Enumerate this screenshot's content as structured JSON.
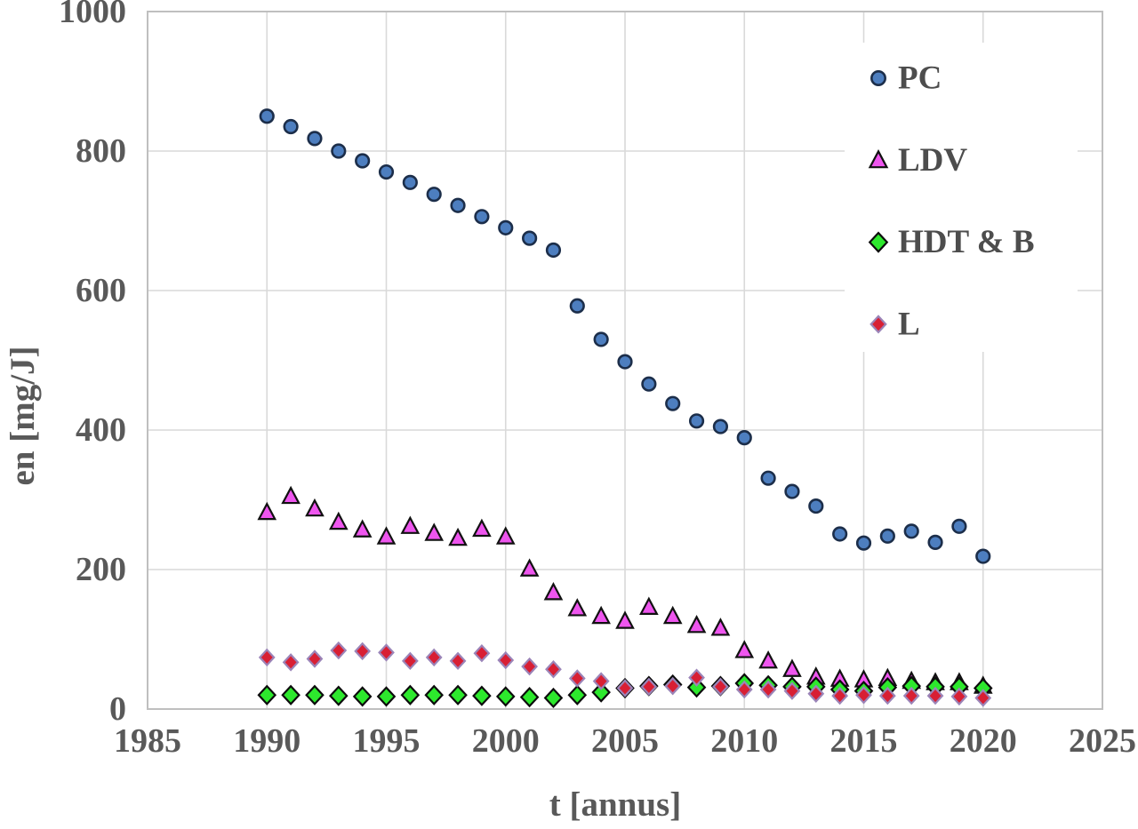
{
  "chart_data": {
    "type": "scatter",
    "title": "",
    "xlabel": "t [annus]",
    "ylabel": "en [mg/J]",
    "xlim": [
      1985,
      2025
    ],
    "ylim": [
      0,
      1000
    ],
    "xticks": [
      "1985",
      "1990",
      "1995",
      "2000",
      "2005",
      "2010",
      "2015",
      "2020",
      "2025"
    ],
    "yticks": [
      "0",
      "200",
      "400",
      "600",
      "800",
      "1000"
    ],
    "grid": true,
    "legend_position": "upper-right",
    "x": [
      1990,
      1991,
      1992,
      1993,
      1994,
      1995,
      1996,
      1997,
      1998,
      1999,
      2000,
      2001,
      2002,
      2003,
      2004,
      2005,
      2006,
      2007,
      2008,
      2009,
      2010,
      2011,
      2012,
      2013,
      2014,
      2015,
      2016,
      2017,
      2018,
      2019,
      2020
    ],
    "series": [
      {
        "name": "PC",
        "marker": "circle",
        "fill": "#4d7ebf",
        "stroke": "#1c2e4a",
        "values": [
          850,
          835,
          818,
          800,
          786,
          770,
          755,
          738,
          722,
          706,
          690,
          675,
          658,
          578,
          530,
          498,
          466,
          438,
          413,
          405,
          389,
          331,
          312,
          291,
          251,
          238,
          248,
          255,
          239,
          262,
          219
        ]
      },
      {
        "name": "LDV",
        "marker": "triangle",
        "fill": "#ee55ee",
        "stroke": "#111111",
        "values": [
          282,
          305,
          287,
          268,
          257,
          247,
          262,
          252,
          245,
          258,
          247,
          201,
          167,
          144,
          133,
          126,
          146,
          133,
          120,
          116,
          84,
          69,
          57,
          46,
          43,
          42,
          44,
          40,
          38,
          38,
          33
        ]
      },
      {
        "name": "HDT & B",
        "marker": "diamond",
        "fill": "#2de82d",
        "stroke": "#0c0c0c",
        "values": [
          20,
          20,
          20,
          19,
          18,
          18,
          20,
          20,
          20,
          19,
          18,
          17,
          16,
          20,
          24,
          30,
          33,
          35,
          31,
          33,
          37,
          34,
          32,
          32,
          28,
          26,
          31,
          33,
          32,
          32,
          30
        ]
      },
      {
        "name": "L",
        "marker": "diamond-small",
        "fill": "#d81f34",
        "stroke": "#9b84b8",
        "values": [
          74,
          67,
          72,
          84,
          83,
          81,
          69,
          74,
          69,
          80,
          70,
          61,
          57,
          44,
          40,
          30,
          32,
          33,
          45,
          32,
          28,
          28,
          26,
          22,
          19,
          20,
          19,
          19,
          19,
          18,
          16
        ]
      }
    ],
    "colors": {
      "background": "#ffffff",
      "grid": "#d9d9d9",
      "border": "#bfbfbf",
      "tick_text": "#595959",
      "legend_text": "#4d4d4d"
    }
  }
}
